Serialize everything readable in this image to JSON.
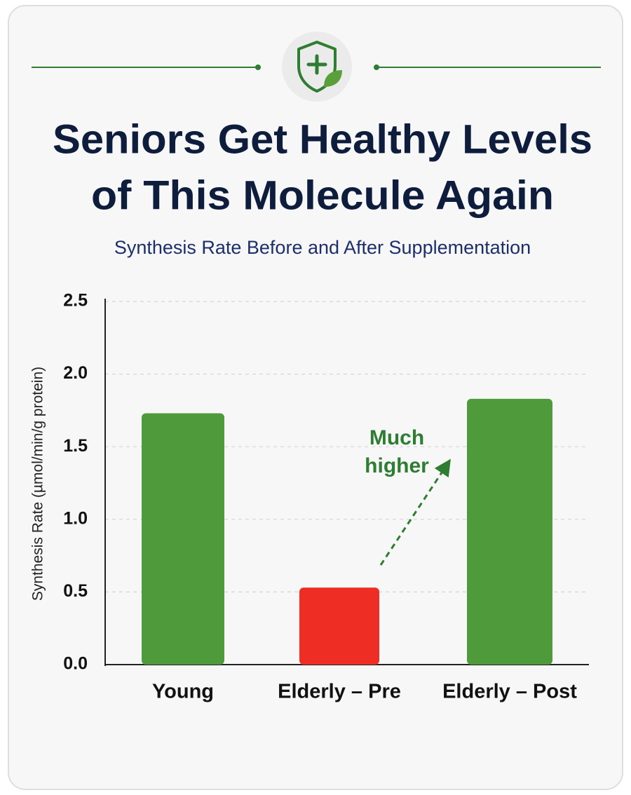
{
  "chart_data": {
    "type": "bar",
    "title": [
      "Seniors Get Healthy Levels",
      "of This Molecule Again"
    ],
    "subtitle": "Synthesis Rate Before and After Supplementation",
    "y_label": "Synthesis Rate (µmol/min/g protein)",
    "categories": [
      "Young",
      "Elderly – Pre",
      "Elderly – Post"
    ],
    "values": [
      1.73,
      0.53,
      1.83
    ],
    "colors": [
      "#4f9a3a",
      "#ee2e24",
      "#4f9a3a"
    ],
    "ylim": [
      0,
      2.5
    ],
    "yticks": [
      {
        "value": 0,
        "label": "0.0"
      },
      0.5,
      {
        "value": 1,
        "label": "1.0"
      },
      1.5,
      {
        "value": 2,
        "label": "2.0"
      },
      2.5
    ],
    "grid": true,
    "annotation": {
      "lines": [
        "Much",
        "higher"
      ],
      "color": "#2e7d32"
    }
  }
}
